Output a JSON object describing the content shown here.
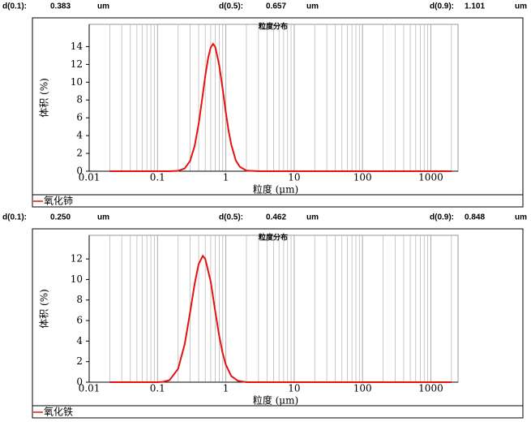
{
  "chart_data": [
    {
      "type": "line",
      "title": "粒度分布",
      "x_label": "粒度 (μm)",
      "y_label": "体积 (%)",
      "stats": [
        {
          "label": "d(0.1):",
          "value": "0.383",
          "unit": "um"
        },
        {
          "label": "d(0.5):",
          "value": "0.657",
          "unit": "um"
        },
        {
          "label": "d(0.9):",
          "value": "1.101",
          "unit": "um"
        }
      ],
      "xscale": "log",
      "grid": true,
      "legend": "bottom-left",
      "xlim": [
        0.01,
        2500
      ],
      "xticks": [
        0.01,
        0.1,
        1,
        10,
        100,
        1000
      ],
      "ylim": [
        0,
        16.5
      ],
      "yticks": [
        0,
        2,
        4,
        6,
        8,
        10,
        12,
        14
      ],
      "x": [
        0.02,
        0.05,
        0.1,
        0.15,
        0.2,
        0.25,
        0.3,
        0.35,
        0.4,
        0.45,
        0.5,
        0.55,
        0.6,
        0.65,
        0.7,
        0.8,
        0.9,
        1.0,
        1.1,
        1.2,
        1.4,
        1.6,
        2,
        3,
        10,
        100,
        1000,
        2000
      ],
      "series": [
        {
          "name": "氧化铈",
          "color": "#e8110f",
          "values": [
            0,
            0,
            0,
            0,
            0.04,
            0.31,
            1.16,
            2.86,
            5.3,
            8.1,
            10.7,
            12.7,
            13.9,
            14.3,
            13.97,
            11.9,
            9.2,
            6.6,
            4.5,
            3.0,
            1.2,
            0.5,
            0.07,
            0,
            0,
            0,
            0,
            0
          ]
        }
      ]
    },
    {
      "type": "line",
      "title": "粒度分布",
      "x_label": "粒度 (μm)",
      "y_label": "体积 (%)",
      "stats": [
        {
          "label": "d(0.1):",
          "value": "0.250",
          "unit": "um"
        },
        {
          "label": "d(0.5):",
          "value": "0.462",
          "unit": "um"
        },
        {
          "label": "d(0.9):",
          "value": "0.848",
          "unit": "um"
        }
      ],
      "xscale": "log",
      "grid": true,
      "legend": "bottom-left",
      "xlim": [
        0.01,
        2500
      ],
      "xticks": [
        0.01,
        0.1,
        1,
        10,
        100,
        1000
      ],
      "ylim": [
        0,
        14.3
      ],
      "yticks": [
        0,
        2,
        4,
        6,
        8,
        10,
        12
      ],
      "x": [
        0.02,
        0.05,
        0.1,
        0.12,
        0.15,
        0.2,
        0.25,
        0.3,
        0.35,
        0.4,
        0.46,
        0.5,
        0.6,
        0.7,
        0.8,
        0.9,
        1.0,
        1.2,
        1.5,
        2,
        3,
        10,
        100,
        1000,
        2000
      ],
      "series": [
        {
          "name": "氧化铁",
          "color": "#e8110f",
          "values": [
            0,
            0,
            0,
            0.03,
            0.2,
            1.3,
            3.7,
            6.8,
            9.6,
            11.5,
            12.3,
            12.0,
            9.8,
            6.9,
            4.5,
            2.8,
            1.7,
            0.6,
            0.13,
            0,
            0,
            0,
            0,
            0,
            0
          ]
        }
      ]
    }
  ]
}
